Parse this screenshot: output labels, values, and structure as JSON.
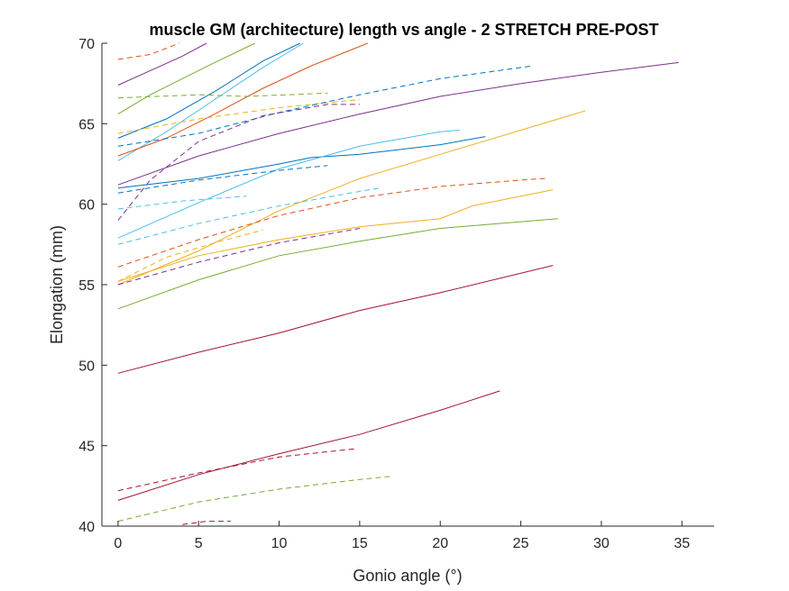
{
  "chart_data": {
    "type": "line",
    "title": "muscle GM (architecture) length vs angle - 2 STRETCH PRE-POST",
    "xlabel": "Gonio angle (°)",
    "ylabel": "Elongation (mm)",
    "xlim": [
      -1,
      37
    ],
    "ylim": [
      40,
      70
    ],
    "xticks": [
      0,
      5,
      10,
      15,
      20,
      25,
      30,
      35
    ],
    "yticks": [
      40,
      45,
      50,
      55,
      60,
      65,
      70
    ],
    "grid": false,
    "series": [
      {
        "color": "#7E2F8E",
        "dash": false,
        "points": [
          [
            0,
            61.2
          ],
          [
            5,
            63.0
          ],
          [
            10,
            64.4
          ],
          [
            15,
            65.6
          ],
          [
            20,
            66.7
          ],
          [
            25,
            67.5
          ],
          [
            30,
            68.2
          ],
          [
            34.8,
            68.8
          ]
        ]
      },
      {
        "color": "#0072BD",
        "dash": false,
        "points": [
          [
            0,
            61.0
          ],
          [
            5,
            61.6
          ],
          [
            10,
            62.5
          ],
          [
            12,
            62.9
          ],
          [
            15,
            63.1
          ],
          [
            20,
            63.7
          ],
          [
            22.8,
            64.2
          ]
        ]
      },
      {
        "color": "#4DBEEE",
        "dash": false,
        "points": [
          [
            0,
            62.7
          ],
          [
            3,
            64.5
          ],
          [
            6,
            66.5
          ],
          [
            9,
            68.5
          ],
          [
            11.5,
            70.0
          ]
        ]
      },
      {
        "color": "#0072BD",
        "dash": false,
        "points": [
          [
            0,
            64.1
          ],
          [
            3,
            65.3
          ],
          [
            6,
            67.0
          ],
          [
            9,
            68.9
          ],
          [
            11.3,
            70.0
          ]
        ]
      },
      {
        "color": "#77AC30",
        "dash": false,
        "points": [
          [
            0,
            65.6
          ],
          [
            2,
            66.8
          ],
          [
            4,
            67.8
          ],
          [
            6,
            68.8
          ],
          [
            8.5,
            70.0
          ]
        ]
      },
      {
        "color": "#7E2F8E",
        "dash": false,
        "points": [
          [
            0,
            67.4
          ],
          [
            2,
            68.3
          ],
          [
            4,
            69.2
          ],
          [
            5.5,
            70.0
          ]
        ]
      },
      {
        "color": "#D95319",
        "dash": false,
        "points": [
          [
            0,
            63.0
          ],
          [
            3,
            64.1
          ],
          [
            6,
            65.6
          ],
          [
            9,
            67.2
          ],
          [
            12,
            68.6
          ],
          [
            15.5,
            70.0
          ]
        ]
      },
      {
        "color": "#EDB120",
        "dash": false,
        "points": [
          [
            0,
            55.0
          ],
          [
            5,
            57.1
          ],
          [
            10,
            59.6
          ],
          [
            15,
            61.6
          ],
          [
            20,
            63.1
          ],
          [
            25,
            64.6
          ],
          [
            29,
            65.8
          ]
        ]
      },
      {
        "color": "#4DBEEE",
        "dash": false,
        "points": [
          [
            0,
            57.9
          ],
          [
            5,
            60.1
          ],
          [
            10,
            62.2
          ],
          [
            15,
            63.6
          ],
          [
            20,
            64.5
          ],
          [
            21.2,
            64.6
          ]
        ]
      },
      {
        "color": "#EDB120",
        "dash": false,
        "points": [
          [
            0,
            55.2
          ],
          [
            5,
            56.8
          ],
          [
            10,
            57.8
          ],
          [
            15,
            58.6
          ],
          [
            20,
            59.1
          ],
          [
            22,
            59.9
          ],
          [
            27,
            60.9
          ]
        ]
      },
      {
        "color": "#77AC30",
        "dash": false,
        "points": [
          [
            0,
            53.5
          ],
          [
            5,
            55.3
          ],
          [
            10,
            56.8
          ],
          [
            15,
            57.7
          ],
          [
            20,
            58.5
          ],
          [
            27.3,
            59.1
          ]
        ]
      },
      {
        "color": "#A2142F",
        "dash": false,
        "points": [
          [
            0,
            49.5
          ],
          [
            5,
            50.8
          ],
          [
            10,
            52.0
          ],
          [
            15,
            53.4
          ],
          [
            20,
            54.5
          ],
          [
            27,
            56.2
          ]
        ]
      },
      {
        "color": "#A2142F",
        "dash": false,
        "points": [
          [
            0,
            41.6
          ],
          [
            5,
            43.2
          ],
          [
            10,
            44.5
          ],
          [
            15,
            45.7
          ],
          [
            20,
            47.2
          ],
          [
            23.7,
            48.4
          ]
        ]
      },
      {
        "color": "#D95319",
        "dash": true,
        "points": [
          [
            0,
            69.0
          ],
          [
            2,
            69.3
          ],
          [
            3.8,
            70.0
          ]
        ]
      },
      {
        "color": "#77AC30",
        "dash": true,
        "points": [
          [
            0,
            66.6
          ],
          [
            5,
            66.8
          ],
          [
            8,
            66.7
          ],
          [
            13,
            66.9
          ]
        ]
      },
      {
        "color": "#EDB120",
        "dash": true,
        "points": [
          [
            0,
            64.4
          ],
          [
            5,
            65.3
          ],
          [
            10,
            66.0
          ],
          [
            15,
            66.5
          ]
        ]
      },
      {
        "color": "#0072BD",
        "dash": true,
        "points": [
          [
            0,
            63.6
          ],
          [
            5,
            64.4
          ],
          [
            10,
            65.7
          ],
          [
            15,
            66.8
          ],
          [
            20,
            67.8
          ],
          [
            25.8,
            68.6
          ]
        ]
      },
      {
        "color": "#7E2F8E",
        "dash": true,
        "points": [
          [
            0,
            59.0
          ],
          [
            2,
            61.5
          ],
          [
            5,
            63.9
          ],
          [
            9,
            65.5
          ],
          [
            13,
            66.2
          ],
          [
            15,
            66.2
          ]
        ]
      },
      {
        "color": "#0072BD",
        "dash": true,
        "points": [
          [
            0,
            60.7
          ],
          [
            5,
            61.5
          ],
          [
            10,
            62.1
          ],
          [
            13,
            62.4
          ]
        ]
      },
      {
        "color": "#4DBEEE",
        "dash": true,
        "points": [
          [
            0,
            57.5
          ],
          [
            5,
            58.8
          ],
          [
            10,
            59.9
          ],
          [
            15,
            60.8
          ],
          [
            16.2,
            61.0
          ]
        ]
      },
      {
        "color": "#4DBEEE",
        "dash": true,
        "points": [
          [
            0,
            59.7
          ],
          [
            4,
            60.2
          ],
          [
            8,
            60.5
          ]
        ]
      },
      {
        "color": "#D95319",
        "dash": true,
        "points": [
          [
            0,
            56.1
          ],
          [
            5,
            57.8
          ],
          [
            10,
            59.3
          ],
          [
            15,
            60.4
          ],
          [
            20,
            61.1
          ],
          [
            25,
            61.5
          ],
          [
            26.5,
            61.6
          ]
        ]
      },
      {
        "color": "#7E2F8E",
        "dash": true,
        "points": [
          [
            0,
            55.0
          ],
          [
            5,
            56.4
          ],
          [
            10,
            57.6
          ],
          [
            15,
            58.5
          ]
        ]
      },
      {
        "color": "#EDB120",
        "dash": true,
        "points": [
          [
            0,
            55.2
          ],
          [
            3,
            56.7
          ],
          [
            6,
            57.6
          ],
          [
            9,
            58.4
          ]
        ]
      },
      {
        "color": "#A2142F",
        "dash": true,
        "points": [
          [
            0,
            42.2
          ],
          [
            5,
            43.3
          ],
          [
            10,
            44.3
          ],
          [
            14.7,
            44.8
          ]
        ]
      },
      {
        "color": "#77AC30",
        "dash": true,
        "points": [
          [
            0,
            40.3
          ],
          [
            5,
            41.5
          ],
          [
            10,
            42.3
          ],
          [
            15,
            42.9
          ],
          [
            17,
            43.1
          ]
        ]
      },
      {
        "color": "#A2142F",
        "dash": true,
        "points": [
          [
            4,
            40.1
          ],
          [
            5.5,
            40.3
          ],
          [
            7,
            40.3
          ]
        ]
      }
    ]
  }
}
